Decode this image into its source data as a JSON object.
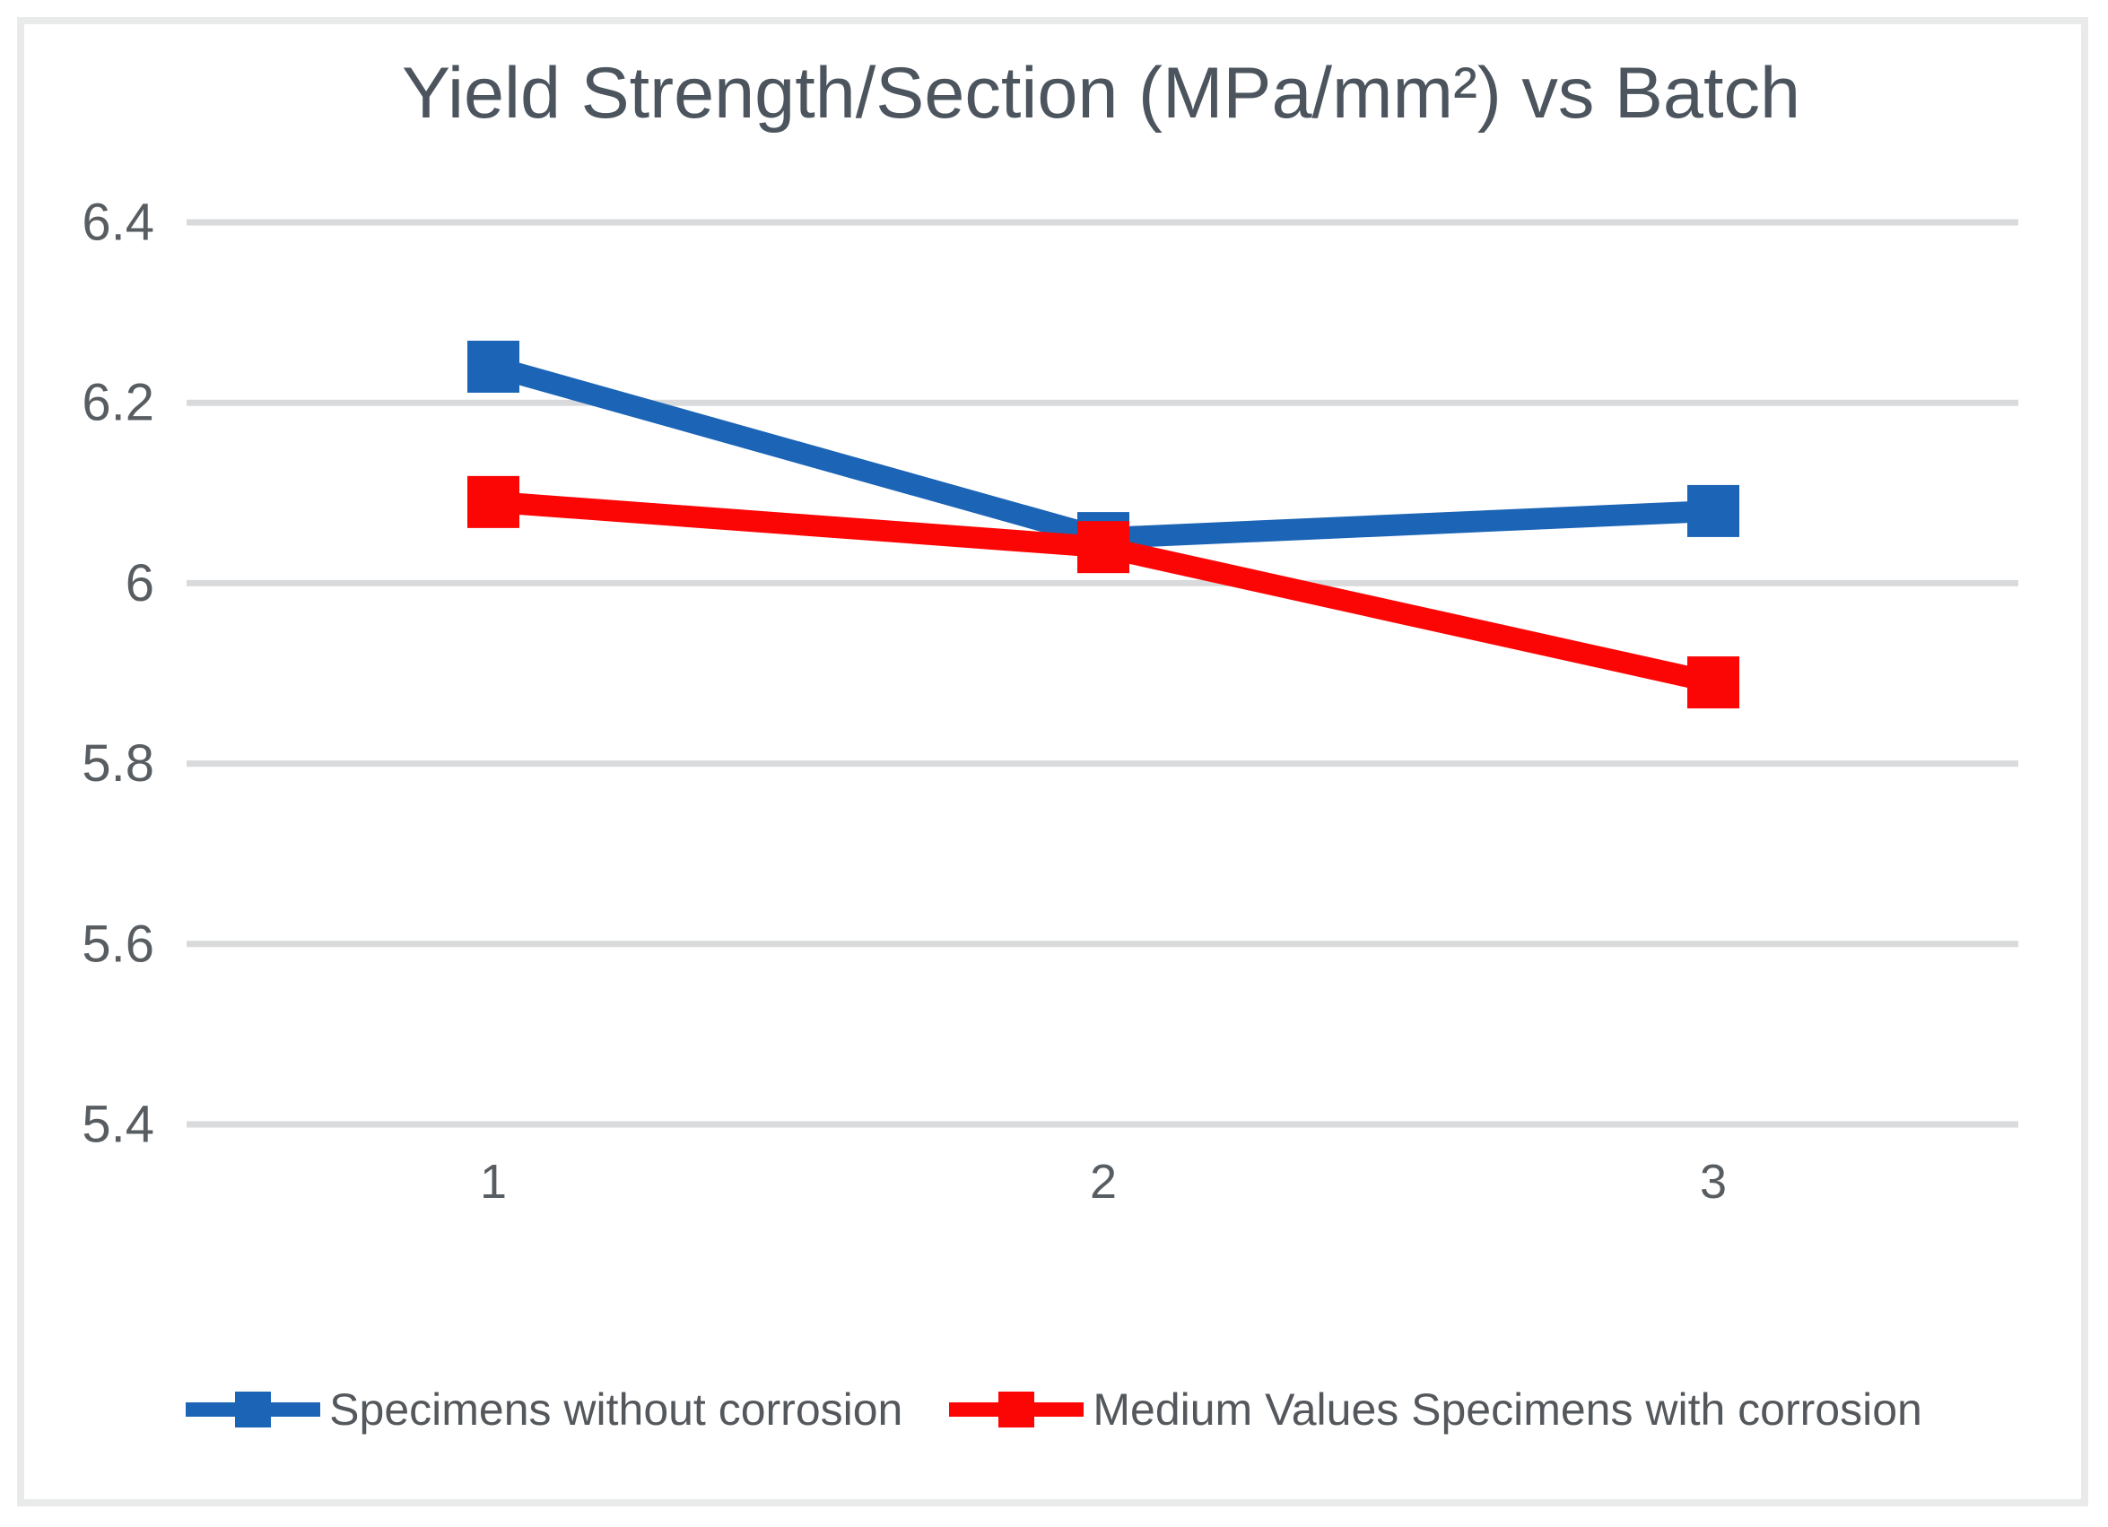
{
  "chart_data": {
    "type": "line",
    "title": "Yield Strength/Section (MPa/mm²) vs Batch",
    "categories": [
      "1",
      "2",
      "3"
    ],
    "series": [
      {
        "name": "Specimens without corrosion",
        "color": "#1B64B6",
        "values": [
          6.24,
          6.05,
          6.08
        ]
      },
      {
        "name": "Medium Values Specimens with corrosion",
        "color": "#FB0505",
        "values": [
          6.09,
          6.04,
          5.89
        ]
      }
    ],
    "xlabel": "",
    "ylabel": "",
    "ylim": [
      5.4,
      6.4
    ],
    "yticks": [
      5.4,
      5.6,
      5.8,
      6,
      6.2,
      6.4
    ],
    "grid": true,
    "legend_position": "bottom",
    "marker_shape": "square",
    "colors": {
      "gridline": "#D9DADB",
      "axis_text": "#585D62",
      "title_text": "#4C555E",
      "frame_border": "#E9EAEA",
      "background": "#FFFFFF"
    }
  }
}
